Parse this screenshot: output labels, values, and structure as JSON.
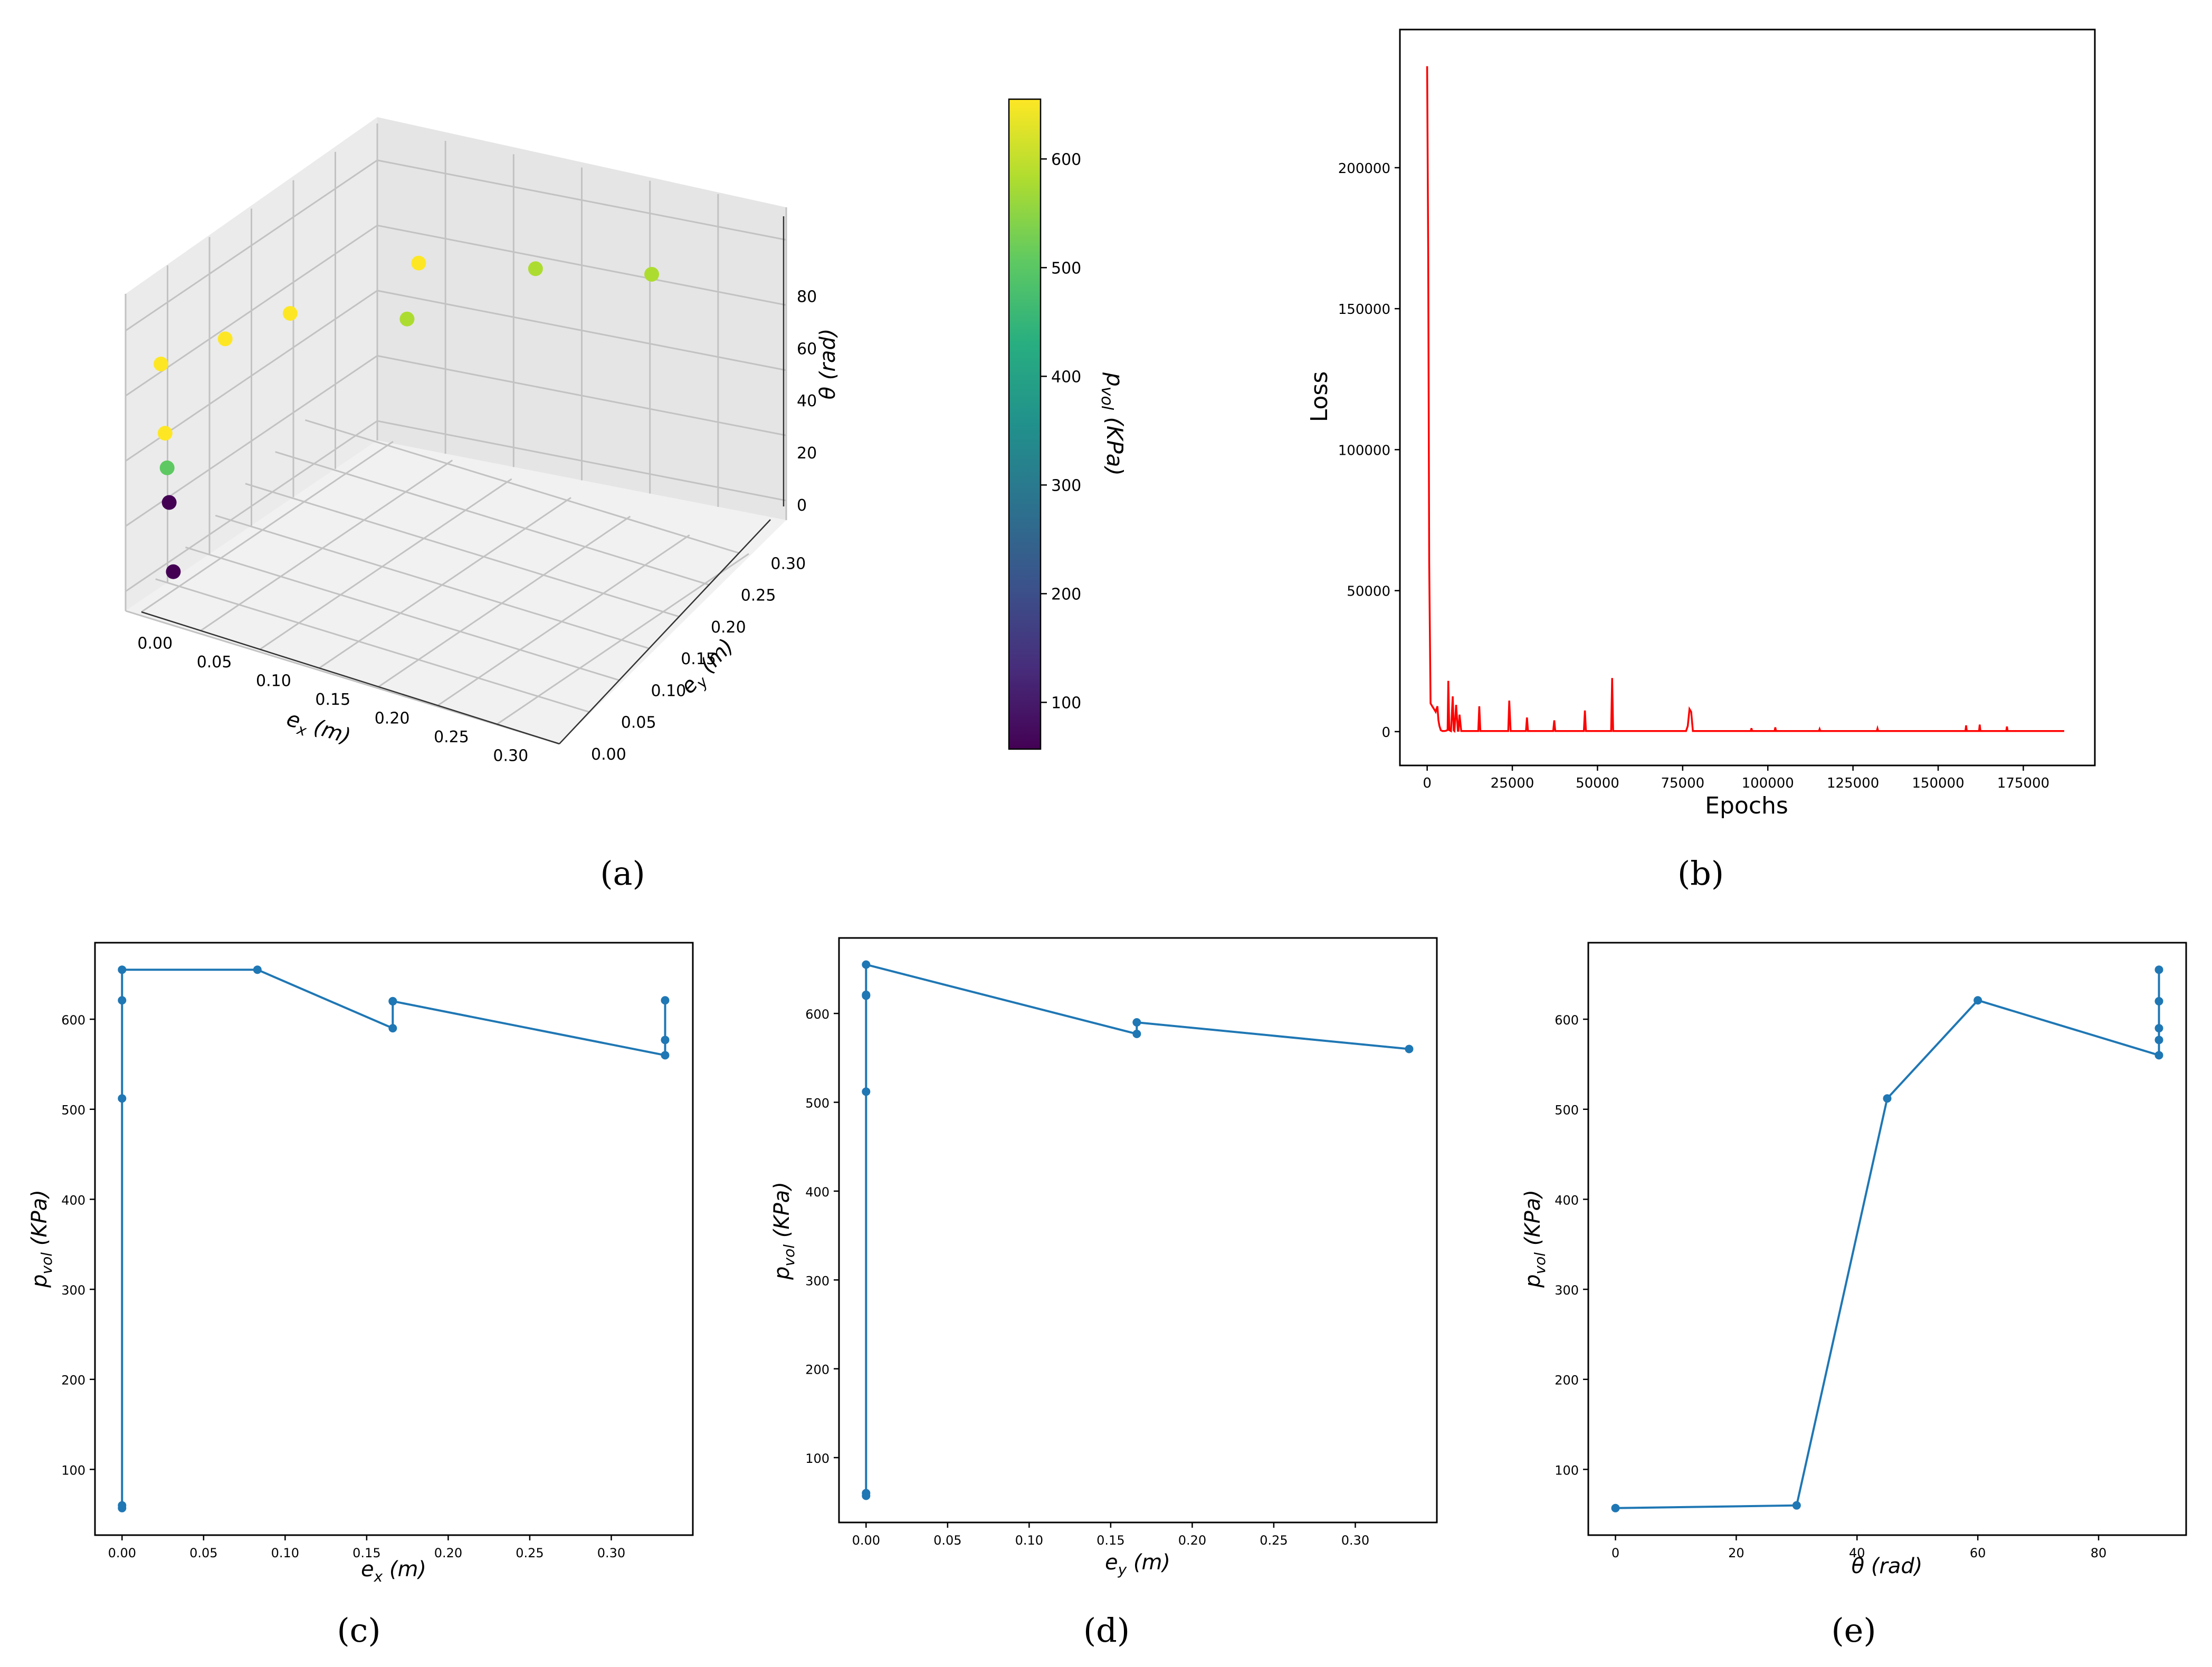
{
  "figure": {
    "panel_captions": [
      "(a)",
      "(b)",
      "(c)",
      "(d)",
      "(e)"
    ]
  },
  "chart_data": [
    {
      "id": "a",
      "type": "scatter3d",
      "caption": "(a)",
      "xlabel": "e_x (m)",
      "ylabel": "e_y (m)",
      "zlabel": "θ (rad)",
      "colorbar_label": "p_vol (KPa)",
      "x_ticks": [
        0.0,
        0.05,
        0.1,
        0.15,
        0.2,
        0.25,
        0.3
      ],
      "x_tick_labels": [
        "0.00",
        "0.05",
        "0.10",
        "0.15",
        "0.20",
        "0.25",
        "0.30"
      ],
      "y_ticks": [
        0.0,
        0.05,
        0.1,
        0.15,
        0.2,
        0.25,
        0.3
      ],
      "y_tick_labels": [
        "0.00",
        "0.05",
        "0.10",
        "0.15",
        "0.20",
        "0.25",
        "0.30"
      ],
      "z_ticks": [
        0,
        20,
        40,
        60,
        80
      ],
      "colorbar_ticks": [
        100,
        200,
        300,
        400,
        500,
        600
      ],
      "colorbar_range": [
        57,
        655
      ],
      "colormap": "viridis",
      "points": [
        {
          "x": 0.0,
          "y": 0.0,
          "z": 0,
          "p": 57
        },
        {
          "x": 0.0,
          "y": 0.0,
          "z": 30,
          "p": 60
        },
        {
          "x": 0.0,
          "y": 0.0,
          "z": 45,
          "p": 512
        },
        {
          "x": 0.0,
          "y": 0.0,
          "z": 60,
          "p": 621
        },
        {
          "x": 0.0,
          "y": 0.0,
          "z": 90,
          "p": 655
        },
        {
          "x": 0.083,
          "y": 0.0,
          "z": 90,
          "p": 655
        },
        {
          "x": 0.167,
          "y": 0.0,
          "z": 90,
          "p": 620
        },
        {
          "x": 0.167,
          "y": 0.167,
          "z": 90,
          "p": 590
        },
        {
          "x": 0.333,
          "y": 0.0,
          "z": 90,
          "p": 621
        },
        {
          "x": 0.333,
          "y": 0.167,
          "z": 90,
          "p": 577
        },
        {
          "x": 0.333,
          "y": 0.333,
          "z": 90,
          "p": 560
        }
      ]
    },
    {
      "id": "b",
      "type": "line",
      "caption": "(b)",
      "xlabel": "Epochs",
      "ylabel": "Loss",
      "xlim": [
        -8000,
        196000
      ],
      "ylim": [
        -12000,
        249000
      ],
      "x_ticks": [
        0,
        25000,
        50000,
        75000,
        100000,
        125000,
        150000,
        175000
      ],
      "y_ticks": [
        0,
        50000,
        100000,
        150000,
        200000
      ],
      "color": "#ff0000",
      "series": [
        {
          "name": "loss",
          "x": [
            0,
            300,
            600,
            1000,
            1500,
            2000,
            2500,
            3000,
            3300,
            3600,
            4000,
            4500,
            5000,
            5500,
            6000,
            6200,
            6500,
            7000,
            7500,
            7800,
            8000,
            8500,
            9000,
            9200,
            9500,
            10000,
            10200,
            10500,
            11000,
            11500,
            12000,
            15000,
            15300,
            15600,
            16000,
            23000,
            23800,
            24100,
            24500,
            25000,
            29000,
            29300,
            29600,
            30000,
            37000,
            37300,
            37600,
            38000,
            46000,
            46300,
            46600,
            47000,
            54000,
            54300,
            54600,
            55000,
            76000,
            76500,
            77000,
            77500,
            78000,
            95000,
            95200,
            95400,
            102000,
            102200,
            102400,
            115000,
            115200,
            115400,
            132000,
            132200,
            132400,
            158000,
            158200,
            158400,
            162000,
            162200,
            162400,
            170000,
            170200,
            170400,
            187000
          ],
          "y": [
            236000,
            170000,
            60000,
            10000,
            9000,
            8000,
            7000,
            9000,
            4000,
            2000,
            500,
            200,
            200,
            300,
            600,
            18000,
            500,
            200,
            12500,
            400,
            200,
            9500,
            300,
            300,
            6000,
            200,
            200,
            200,
            200,
            200,
            200,
            200,
            9000,
            200,
            200,
            200,
            200,
            11000,
            200,
            200,
            200,
            5000,
            200,
            200,
            200,
            4000,
            200,
            200,
            200,
            7500,
            200,
            200,
            200,
            19000,
            200,
            200,
            200,
            2000,
            8000,
            7000,
            200,
            200,
            1200,
            200,
            200,
            1500,
            200,
            200,
            900,
            200,
            200,
            1100,
            200,
            200,
            2200,
            200,
            200,
            2500,
            200,
            200,
            1800,
            200,
            200
          ]
        }
      ]
    },
    {
      "id": "c",
      "type": "line",
      "caption": "(c)",
      "xlabel": "e_x (m)",
      "ylabel": "p_vol (KPa)",
      "xlim": [
        -0.0166,
        0.35
      ],
      "ylim": [
        27,
        685
      ],
      "x_ticks": [
        0.0,
        0.05,
        0.1,
        0.15,
        0.2,
        0.25,
        0.3
      ],
      "x_tick_labels": [
        "0.00",
        "0.05",
        "0.10",
        "0.15",
        "0.20",
        "0.25",
        "0.30"
      ],
      "y_ticks": [
        100,
        200,
        300,
        400,
        500,
        600
      ],
      "series": [
        {
          "name": "p_vol",
          "x": [
            0.0,
            0.0,
            0.0,
            0.0,
            0.0,
            0.083,
            0.166,
            0.166,
            0.166,
            0.333,
            0.333,
            0.333
          ],
          "y": [
            57,
            60,
            512,
            621,
            655,
            655,
            590,
            620,
            620,
            560,
            577,
            621
          ]
        }
      ]
    },
    {
      "id": "d",
      "type": "line",
      "caption": "(d)",
      "xlabel": "e_y (m)",
      "ylabel": "p_vol (KPa)",
      "xlim": [
        -0.0166,
        0.35
      ],
      "ylim": [
        27,
        685
      ],
      "x_ticks": [
        0.0,
        0.05,
        0.1,
        0.15,
        0.2,
        0.25,
        0.3
      ],
      "x_tick_labels": [
        "0.00",
        "0.05",
        "0.10",
        "0.15",
        "0.20",
        "0.25",
        "0.30"
      ],
      "y_ticks": [
        100,
        200,
        300,
        400,
        500,
        600
      ],
      "series": [
        {
          "name": "p_vol",
          "x": [
            0.0,
            0.0,
            0.0,
            0.0,
            0.0,
            0.0,
            0.166,
            0.166,
            0.333
          ],
          "y": [
            57,
            60,
            512,
            620,
            621,
            655,
            577,
            590,
            560
          ]
        }
      ]
    },
    {
      "id": "e",
      "type": "line",
      "caption": "(e)",
      "xlabel": "θ (rad)",
      "ylabel": "p_vol (KPa)",
      "xlim": [
        -4.5,
        94.5
      ],
      "ylim": [
        27,
        685
      ],
      "x_ticks": [
        0,
        20,
        40,
        60,
        80
      ],
      "y_ticks": [
        100,
        200,
        300,
        400,
        500,
        600
      ],
      "series": [
        {
          "name": "p_vol",
          "x": [
            0,
            30,
            45,
            60,
            90,
            90,
            90,
            90,
            90
          ],
          "y": [
            57,
            60,
            512,
            621,
            560,
            577,
            590,
            620,
            655
          ]
        }
      ]
    }
  ]
}
